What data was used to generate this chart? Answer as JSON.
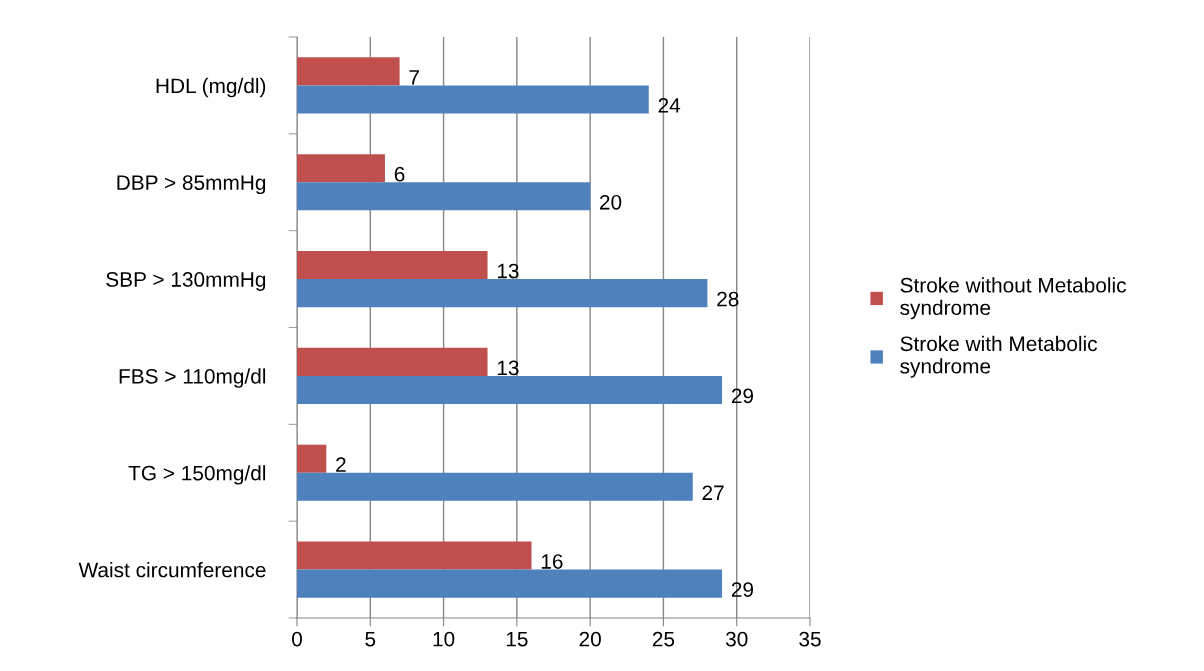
{
  "chart_data": {
    "type": "bar",
    "orientation": "horizontal",
    "categories": [
      "HDL (mg/dl)",
      "DBP > 85mmHg",
      "SBP > 130mmHg",
      "FBS > 110mg/dl",
      "TG > 150mg/dl",
      "Waist circumference"
    ],
    "series": [
      {
        "name": "Stroke without Metabolic syndrome",
        "color": "#c0504d",
        "values": [
          7,
          6,
          13,
          13,
          2,
          16
        ]
      },
      {
        "name": "Stroke with Metabolic syndrome",
        "color": "#4f81bd",
        "values": [
          24,
          20,
          28,
          29,
          27,
          29
        ]
      }
    ],
    "xlim": [
      0,
      35
    ],
    "xticks": [
      0,
      5,
      10,
      15,
      20,
      25,
      30,
      35
    ],
    "grid": "x",
    "legend": "right",
    "data_labels": true
  }
}
